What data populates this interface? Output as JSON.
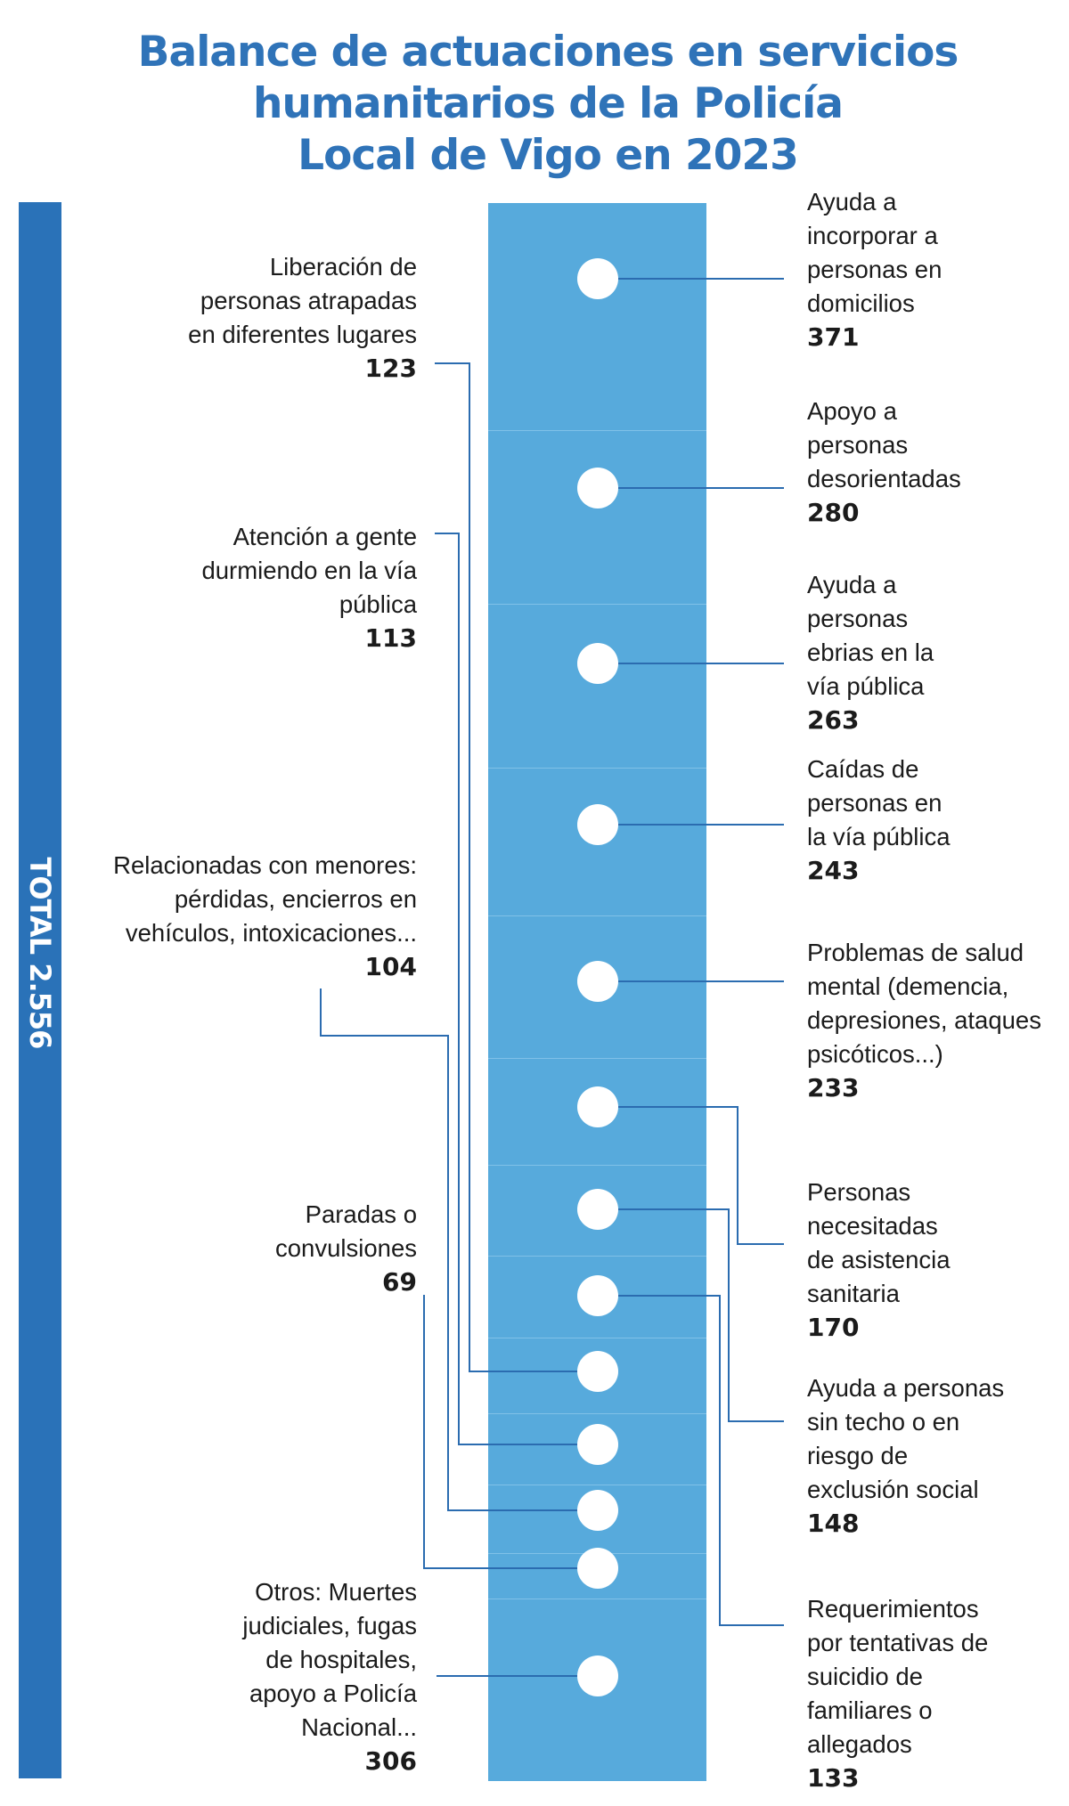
{
  "title_lines": [
    "Balance de actuaciones en servicios",
    "humanitarios de la Policía",
    "Local de Vigo en 2023"
  ],
  "total_label": "TOTAL 2.556",
  "colors": {
    "title": "#2f73b8",
    "total_bar": "#2a72b8",
    "column": "#57aadc",
    "connector": "#2b6cb0",
    "dot": "#ffffff"
  },
  "chart_data": {
    "type": "table",
    "title": "Balance de actuaciones en servicios humanitarios de la Policía Local de Vigo en 2023",
    "total": 2556,
    "categories": [
      "Ayuda a incorporar a personas en domicilios",
      "Apoyo a personas desorientadas",
      "Ayuda a personas ebrias en la vía pública",
      "Caídas de personas en la vía pública",
      "Problemas de salud mental (demencia, depresiones, ataques psicóticos...)",
      "Personas necesitadas de asistencia sanitaria",
      "Ayuda a personas sin techo o en riesgo de exclusión social",
      "Requerimientos por tentativas de suicidio de familiares o allegados",
      "Liberación de personas atrapadas en diferentes lugares",
      "Atención a gente durmiendo en la vía pública",
      "Relacionadas con menores: pérdidas, encierros en vehículos, intoxicaciones...",
      "Paradas o convulsiones",
      "Otros: Muertes judiciales, fugas de hospitales, apoyo a Policía Nacional..."
    ],
    "values": [
      371,
      280,
      263,
      243,
      233,
      170,
      148,
      133,
      123,
      113,
      104,
      69,
      306
    ]
  },
  "right_labels": [
    {
      "lines": [
        "Ayuda a",
        "incorporar a",
        "personas en",
        "domicilios"
      ],
      "value": "371"
    },
    {
      "lines": [
        "Apoyo a",
        "personas",
        "desorientadas"
      ],
      "value": "280"
    },
    {
      "lines": [
        "Ayuda a",
        "personas",
        "ebrias en la",
        "vía pública"
      ],
      "value": "263"
    },
    {
      "lines": [
        "Caídas de",
        "personas en",
        "la vía pública"
      ],
      "value": "243"
    },
    {
      "lines": [
        "Problemas de salud",
        "mental (demencia,",
        "depresiones, ataques",
        "psicóticos...)"
      ],
      "value": "233"
    },
    {
      "lines": [
        "Personas",
        "necesitadas",
        "de asistencia",
        "sanitaria"
      ],
      "value": "170"
    },
    {
      "lines": [
        "Ayuda a personas",
        "sin techo o en",
        "riesgo de",
        "exclusión social"
      ],
      "value": "148"
    },
    {
      "lines": [
        "Requerimientos",
        "por tentativas de",
        "suicidio de",
        "familiares o",
        "allegados"
      ],
      "value": "133"
    }
  ],
  "left_labels": [
    {
      "lines": [
        "Liberación de",
        "personas atrapadas",
        "en diferentes lugares"
      ],
      "value": "123"
    },
    {
      "lines": [
        "Atención a gente",
        "durmiendo en la vía",
        "pública"
      ],
      "value": "113"
    },
    {
      "lines": [
        "Relacionadas con menores:",
        "pérdidas, encierros en",
        "vehículos, intoxicaciones..."
      ],
      "value": "104"
    },
    {
      "lines": [
        "Paradas o",
        "convulsiones"
      ],
      "value": "69"
    },
    {
      "lines": [
        "Otros: Muertes",
        "judiciales, fugas",
        "de hospitales,",
        "apoyo a Policía",
        "Nacional..."
      ],
      "value": "306"
    }
  ]
}
